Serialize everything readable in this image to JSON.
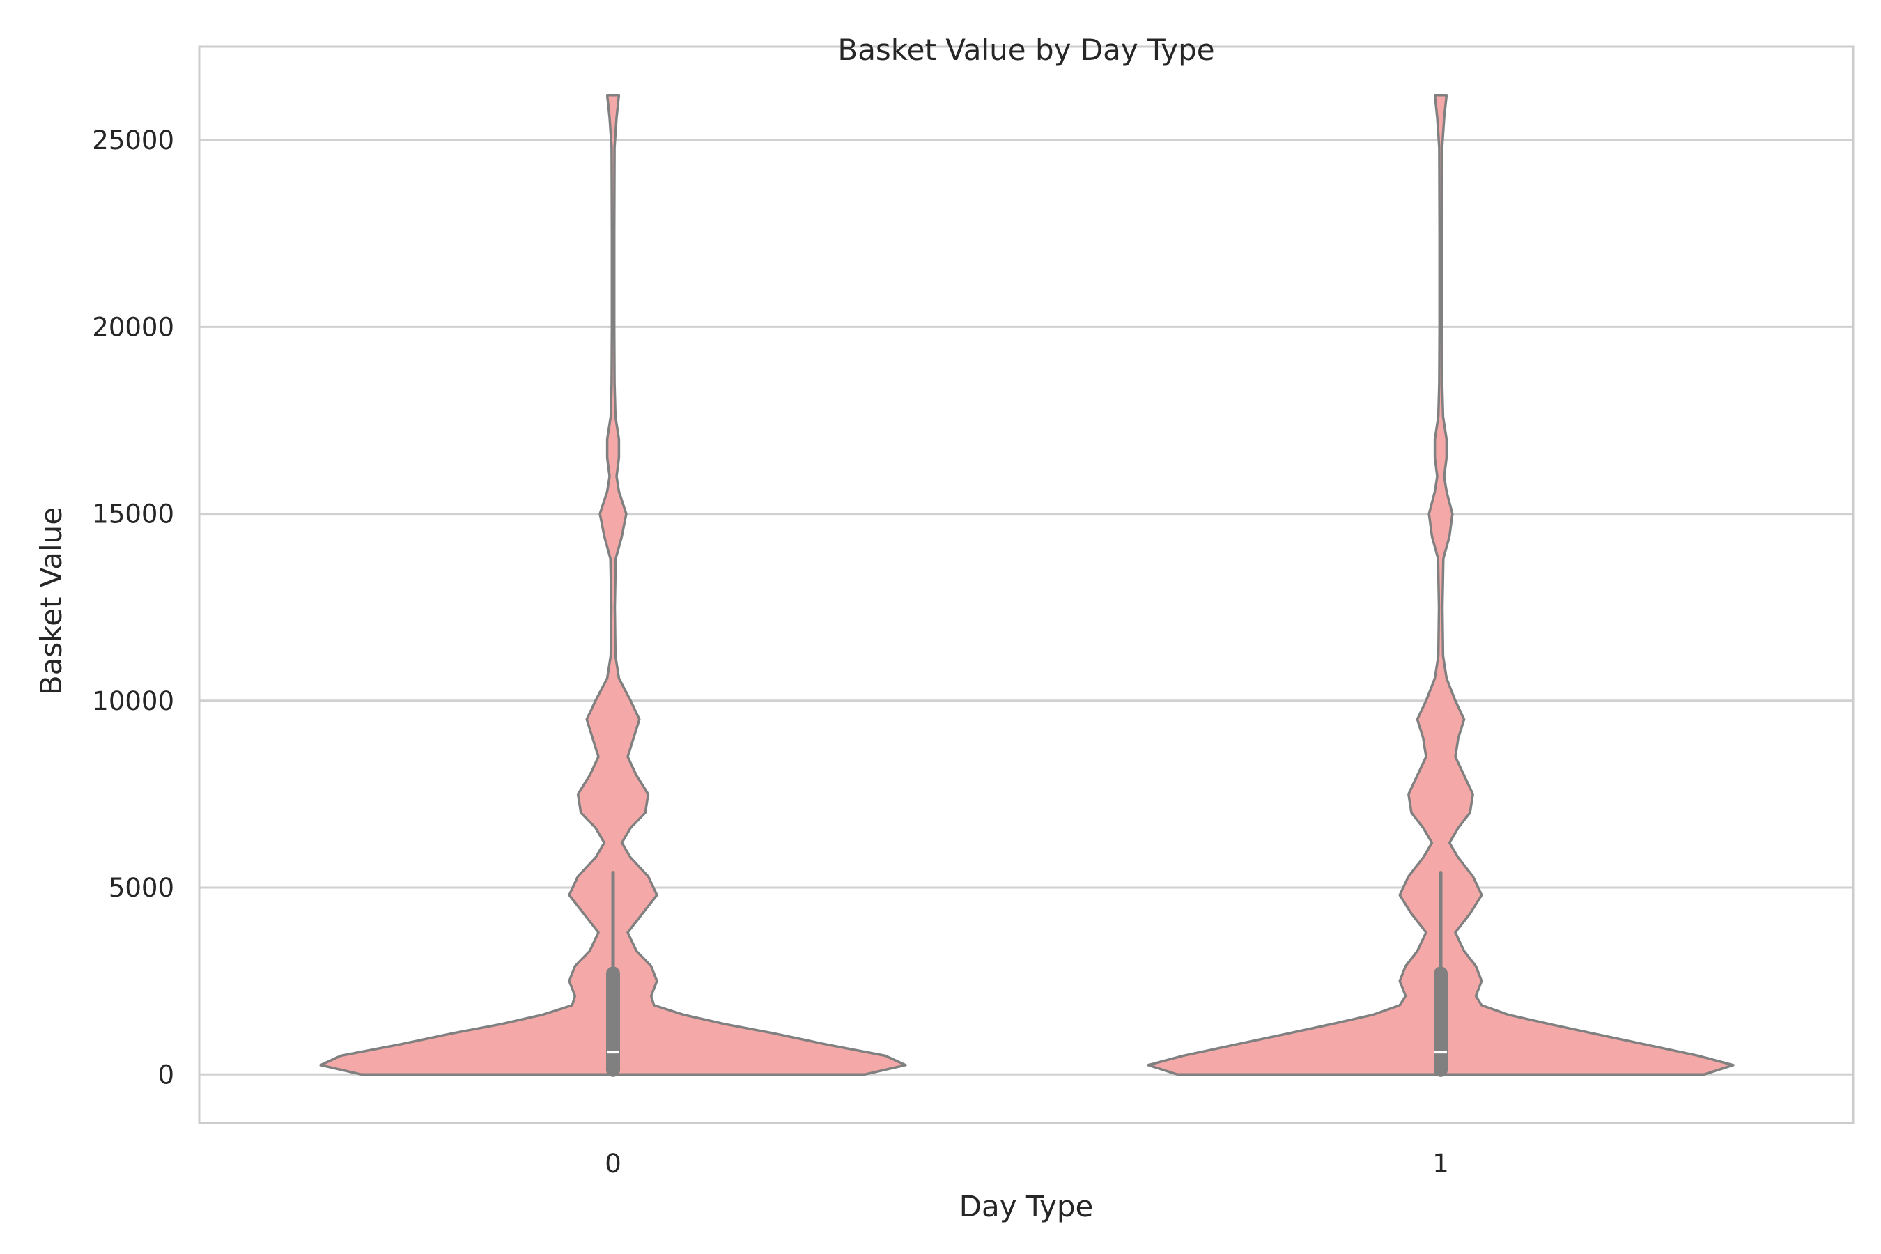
{
  "chart_data": {
    "type": "violin",
    "title": "Basket Value by Day Type",
    "xlabel": "Day Type",
    "ylabel": "Basket Value",
    "categories": [
      "0",
      "1"
    ],
    "ylim": [
      -1300,
      27500
    ],
    "yticks": [
      0,
      5000,
      10000,
      15000,
      20000,
      25000
    ],
    "grid": "horizontal",
    "colors": {
      "fill": "#f4a8a8",
      "edge": "#808080",
      "grid": "#d0d0d0",
      "frame": "#cccccc",
      "median": "#ffffff"
    },
    "violins": [
      {
        "category": "0",
        "box": {
          "q1": 120,
          "median": 600,
          "q3": 2700,
          "whisker_low": 0,
          "whisker_high": 5400
        },
        "profile": [
          {
            "y": 0,
            "w": 0.86
          },
          {
            "y": 250,
            "w": 1.0
          },
          {
            "y": 500,
            "w": 0.93
          },
          {
            "y": 800,
            "w": 0.73
          },
          {
            "y": 1100,
            "w": 0.55
          },
          {
            "y": 1350,
            "w": 0.38
          },
          {
            "y": 1600,
            "w": 0.24
          },
          {
            "y": 1850,
            "w": 0.14
          },
          {
            "y": 2100,
            "w": 0.13
          },
          {
            "y": 2500,
            "w": 0.15
          },
          {
            "y": 2900,
            "w": 0.13
          },
          {
            "y": 3300,
            "w": 0.08
          },
          {
            "y": 3800,
            "w": 0.05
          },
          {
            "y": 4300,
            "w": 0.1
          },
          {
            "y": 4800,
            "w": 0.15
          },
          {
            "y": 5300,
            "w": 0.12
          },
          {
            "y": 5800,
            "w": 0.06
          },
          {
            "y": 6200,
            "w": 0.03
          },
          {
            "y": 6600,
            "w": 0.06
          },
          {
            "y": 7000,
            "w": 0.11
          },
          {
            "y": 7500,
            "w": 0.12
          },
          {
            "y": 8000,
            "w": 0.08
          },
          {
            "y": 8500,
            "w": 0.05
          },
          {
            "y": 9000,
            "w": 0.07
          },
          {
            "y": 9500,
            "w": 0.09
          },
          {
            "y": 10000,
            "w": 0.06
          },
          {
            "y": 10600,
            "w": 0.02
          },
          {
            "y": 11200,
            "w": 0.008
          },
          {
            "y": 12500,
            "w": 0.006
          },
          {
            "y": 13800,
            "w": 0.009
          },
          {
            "y": 14400,
            "w": 0.03
          },
          {
            "y": 15000,
            "w": 0.045
          },
          {
            "y": 15600,
            "w": 0.02
          },
          {
            "y": 16000,
            "w": 0.012
          },
          {
            "y": 16500,
            "w": 0.02
          },
          {
            "y": 17000,
            "w": 0.02
          },
          {
            "y": 17600,
            "w": 0.008
          },
          {
            "y": 18500,
            "w": 0.005
          },
          {
            "y": 20000,
            "w": 0.004
          },
          {
            "y": 22500,
            "w": 0.004
          },
          {
            "y": 24800,
            "w": 0.005
          },
          {
            "y": 25600,
            "w": 0.012
          },
          {
            "y": 26200,
            "w": 0.02
          }
        ]
      },
      {
        "category": "1",
        "box": {
          "q1": 120,
          "median": 600,
          "q3": 2700,
          "whisker_low": 0,
          "whisker_high": 5400
        },
        "profile": [
          {
            "y": 0,
            "w": 0.9
          },
          {
            "y": 250,
            "w": 1.0
          },
          {
            "y": 500,
            "w": 0.88
          },
          {
            "y": 800,
            "w": 0.7
          },
          {
            "y": 1100,
            "w": 0.52
          },
          {
            "y": 1350,
            "w": 0.37
          },
          {
            "y": 1600,
            "w": 0.23
          },
          {
            "y": 1850,
            "w": 0.14
          },
          {
            "y": 2100,
            "w": 0.12
          },
          {
            "y": 2500,
            "w": 0.14
          },
          {
            "y": 2900,
            "w": 0.12
          },
          {
            "y": 3300,
            "w": 0.08
          },
          {
            "y": 3800,
            "w": 0.05
          },
          {
            "y": 4300,
            "w": 0.1
          },
          {
            "y": 4800,
            "w": 0.14
          },
          {
            "y": 5300,
            "w": 0.11
          },
          {
            "y": 5800,
            "w": 0.06
          },
          {
            "y": 6200,
            "w": 0.03
          },
          {
            "y": 6600,
            "w": 0.06
          },
          {
            "y": 7000,
            "w": 0.1
          },
          {
            "y": 7500,
            "w": 0.11
          },
          {
            "y": 8000,
            "w": 0.08
          },
          {
            "y": 8500,
            "w": 0.05
          },
          {
            "y": 9000,
            "w": 0.06
          },
          {
            "y": 9500,
            "w": 0.08
          },
          {
            "y": 10000,
            "w": 0.05
          },
          {
            "y": 10600,
            "w": 0.02
          },
          {
            "y": 11200,
            "w": 0.008
          },
          {
            "y": 12500,
            "w": 0.006
          },
          {
            "y": 13800,
            "w": 0.009
          },
          {
            "y": 14400,
            "w": 0.03
          },
          {
            "y": 15000,
            "w": 0.04
          },
          {
            "y": 15600,
            "w": 0.02
          },
          {
            "y": 16000,
            "w": 0.012
          },
          {
            "y": 16500,
            "w": 0.02
          },
          {
            "y": 17000,
            "w": 0.02
          },
          {
            "y": 17600,
            "w": 0.008
          },
          {
            "y": 18500,
            "w": 0.005
          },
          {
            "y": 20000,
            "w": 0.004
          },
          {
            "y": 22500,
            "w": 0.004
          },
          {
            "y": 24800,
            "w": 0.005
          },
          {
            "y": 25600,
            "w": 0.012
          },
          {
            "y": 26200,
            "w": 0.02
          }
        ]
      }
    ]
  }
}
